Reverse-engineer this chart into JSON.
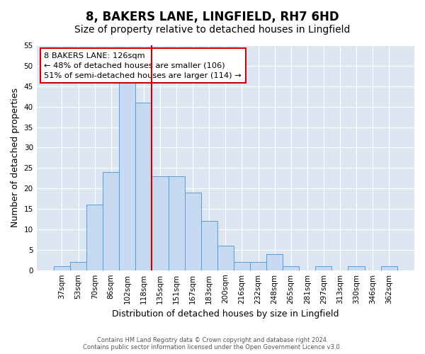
{
  "title": "8, BAKERS LANE, LINGFIELD, RH7 6HD",
  "subtitle": "Size of property relative to detached houses in Lingfield",
  "xlabel": "Distribution of detached houses by size in Lingfield",
  "ylabel": "Number of detached properties",
  "bar_labels": [
    "37sqm",
    "53sqm",
    "70sqm",
    "86sqm",
    "102sqm",
    "118sqm",
    "135sqm",
    "151sqm",
    "167sqm",
    "183sqm",
    "200sqm",
    "216sqm",
    "232sqm",
    "248sqm",
    "265sqm",
    "281sqm",
    "297sqm",
    "313sqm",
    "330sqm",
    "346sqm",
    "362sqm"
  ],
  "bar_values": [
    1,
    2,
    16,
    24,
    46,
    41,
    23,
    23,
    19,
    12,
    6,
    2,
    2,
    4,
    1,
    0,
    1,
    0,
    1,
    0,
    1
  ],
  "bar_color": "#c5d9f0",
  "bar_edge_color": "#5b9bd5",
  "vline_x_index": 5,
  "vline_color": "#cc0000",
  "annotation_text": "8 BAKERS LANE: 126sqm\n← 48% of detached houses are smaller (106)\n51% of semi-detached houses are larger (114) →",
  "annotation_box_edge_color": "#cc0000",
  "annotation_box_face_color": "#ffffff",
  "ylim": [
    0,
    55
  ],
  "yticks": [
    0,
    5,
    10,
    15,
    20,
    25,
    30,
    35,
    40,
    45,
    50,
    55
  ],
  "footnote": "Contains HM Land Registry data © Crown copyright and database right 2024.\nContains public sector information licensed under the Open Government Licence v3.0.",
  "background_color": "#ffffff",
  "plot_bg_color": "#dce6f1",
  "grid_color": "#ffffff",
  "title_fontsize": 12,
  "subtitle_fontsize": 10,
  "tick_fontsize": 7.5,
  "ylabel_fontsize": 9,
  "xlabel_fontsize": 9
}
